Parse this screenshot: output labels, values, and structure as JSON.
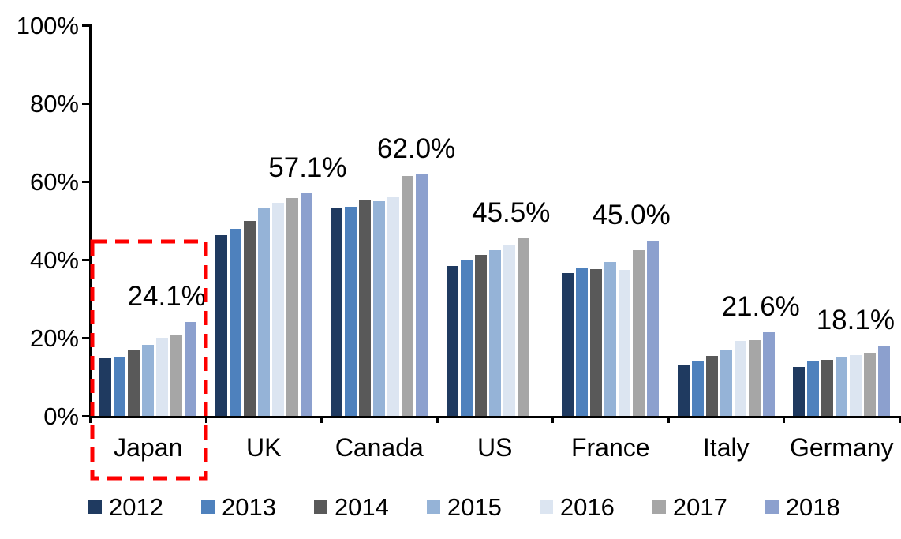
{
  "chart_data": {
    "type": "bar",
    "title": "",
    "unit": "%",
    "categories": [
      "Japan",
      "UK",
      "Canada",
      "US",
      "France",
      "Italy",
      "Germany"
    ],
    "series": [
      {
        "name": "2012",
        "color": "#1F3A60",
        "values": [
          14.9,
          46.3,
          53.2,
          38.4,
          36.6,
          13.3,
          12.6
        ]
      },
      {
        "name": "2013",
        "color": "#4E81BD",
        "values": [
          15.0,
          48.0,
          53.7,
          40.2,
          37.8,
          14.2,
          14.0
        ]
      },
      {
        "name": "2014",
        "color": "#595959",
        "values": [
          16.8,
          50.1,
          55.2,
          41.3,
          37.7,
          15.4,
          14.5
        ]
      },
      {
        "name": "2015",
        "color": "#95B3D7",
        "values": [
          18.2,
          53.5,
          55.0,
          42.5,
          39.4,
          17.0,
          15.0
        ]
      },
      {
        "name": "2016",
        "color": "#DCE5F1",
        "values": [
          20.1,
          54.7,
          56.3,
          43.9,
          37.4,
          19.2,
          15.6
        ]
      },
      {
        "name": "2017",
        "color": "#A6A6A6",
        "values": [
          21.0,
          55.8,
          61.5,
          45.5,
          42.6,
          19.4,
          16.2
        ]
      },
      {
        "name": "2018",
        "color": "#8CA0CE",
        "values": [
          24.1,
          57.1,
          62.0,
          null,
          45.0,
          21.6,
          18.1
        ]
      }
    ],
    "data_labels": [
      "24.1%",
      "57.1%",
      "62.0%",
      "45.5%",
      "45.0%",
      "21.6%",
      "18.1%"
    ],
    "y_ticks": [
      {
        "label": "100%",
        "value": 100
      },
      {
        "label": "80%",
        "value": 80
      },
      {
        "label": "60%",
        "value": 60
      },
      {
        "label": "40%",
        "value": 40
      },
      {
        "label": "20%",
        "value": 20
      },
      {
        "label": "0%",
        "value": 0
      }
    ],
    "ylim": [
      0,
      100
    ],
    "grid": false,
    "legend_position": "bottom",
    "legend_entries": [
      "2012",
      "2013",
      "2014",
      "2015",
      "2016",
      "2017",
      "2018"
    ],
    "highlight": {
      "category": "Japan",
      "style": "red-dashed-box",
      "color": "#FE0000"
    }
  }
}
